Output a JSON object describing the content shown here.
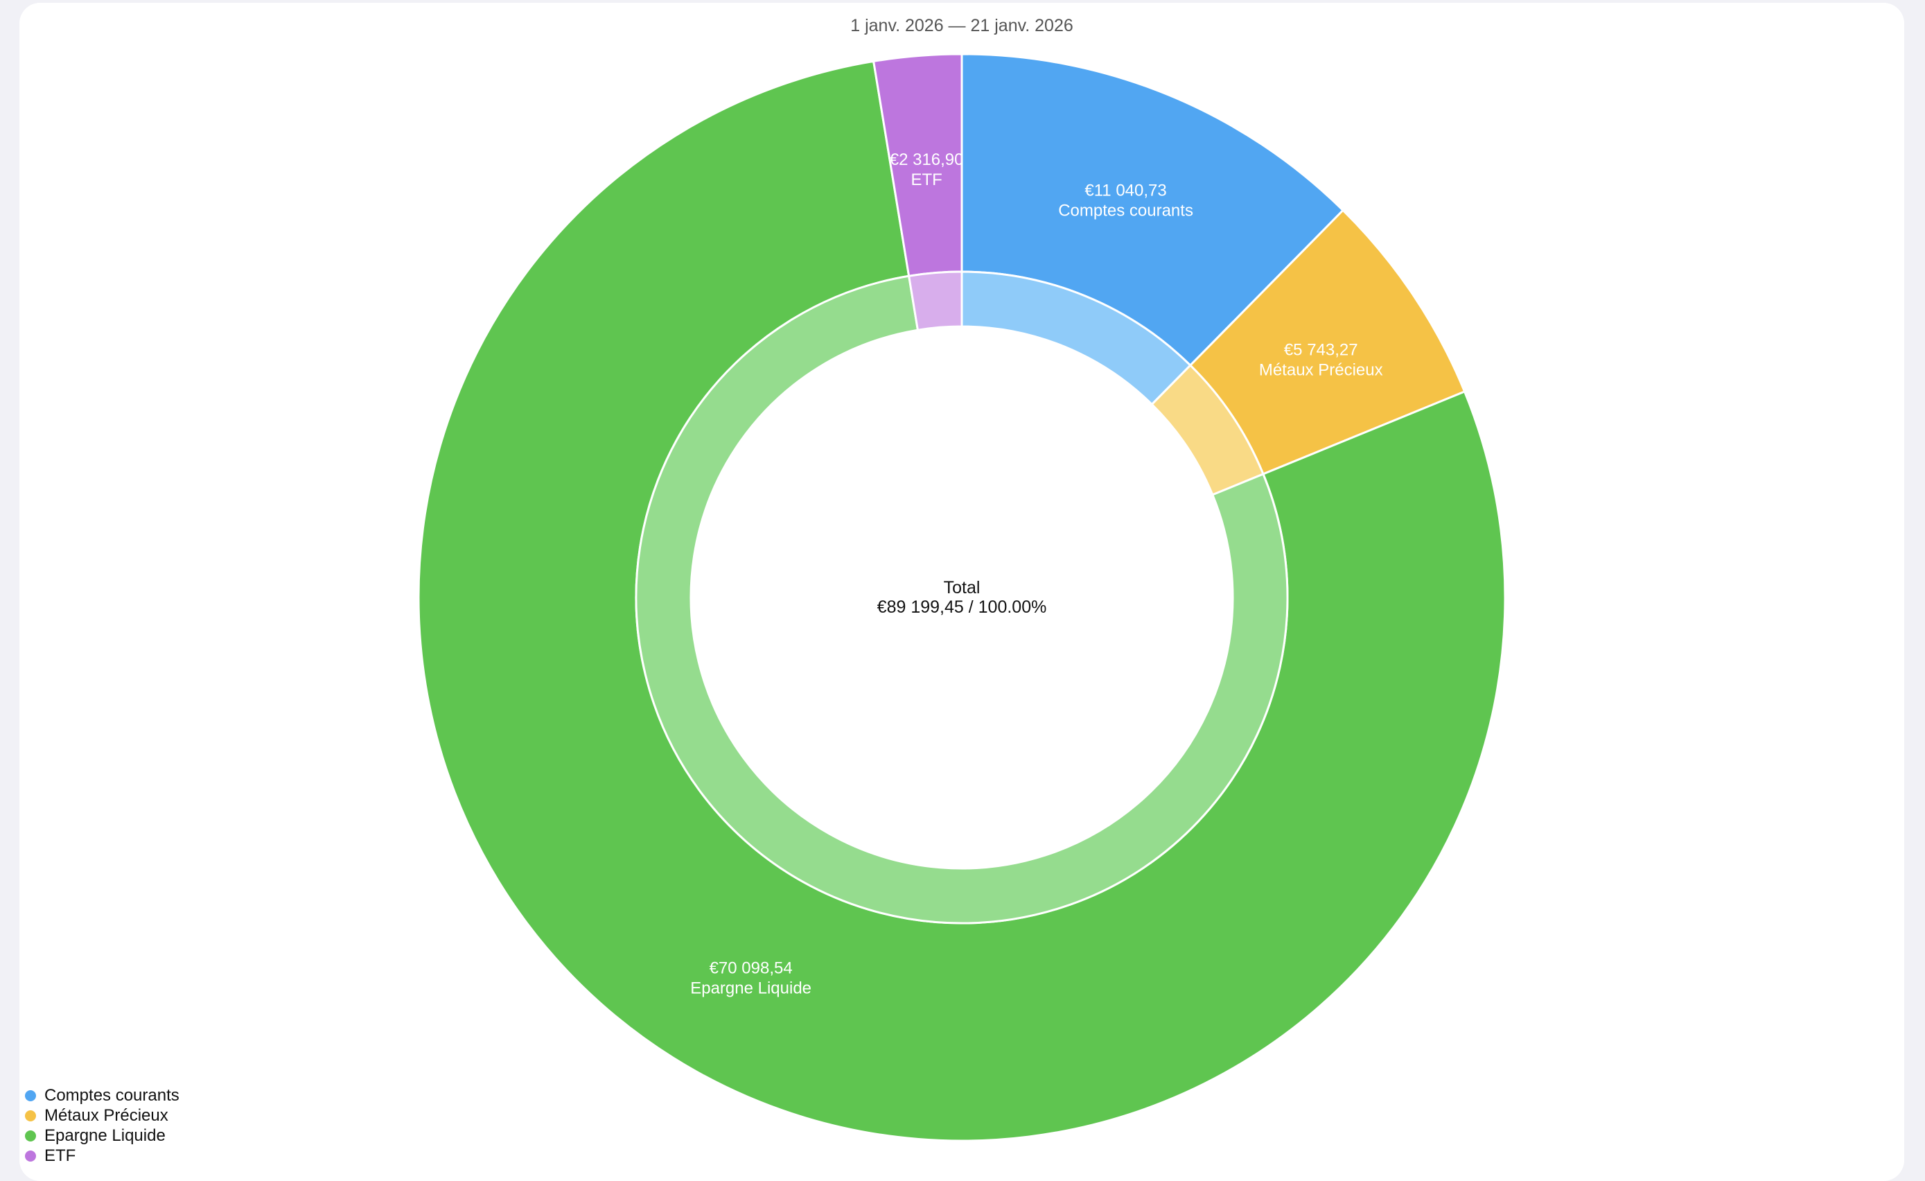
{
  "chart_data": {
    "type": "pie",
    "subtitle": "1 janv. 2026 — 21 janv. 2026",
    "currency": "€",
    "center": {
      "title": "Total",
      "value_text": "€89 199,45 / 100.00%"
    },
    "total": 89199.45,
    "slices": [
      {
        "name": "Comptes courants",
        "value": 11040.73,
        "value_text": "€11 040,73",
        "color": "#51a6f2",
        "inner_color": "#8fcbf9"
      },
      {
        "name": "Métaux Précieux",
        "value": 5743.27,
        "value_text": "€5 743,27",
        "color": "#f5c246",
        "inner_color": "#f9da86"
      },
      {
        "name": "Epargne Liquide",
        "value": 70098.54,
        "value_text": "€70 098,54",
        "color": "#5fc550",
        "inner_color": "#95dc8e"
      },
      {
        "name": "ETF",
        "value": 2316.9,
        "value_text": "€2 316,90",
        "color": "#bd76de",
        "inner_color": "#d8aeec"
      }
    ],
    "legend": {
      "placement": "bottom-left",
      "items": [
        "Comptes courants",
        "Métaux Précieux",
        "Epargne Liquide",
        "ETF"
      ]
    }
  }
}
